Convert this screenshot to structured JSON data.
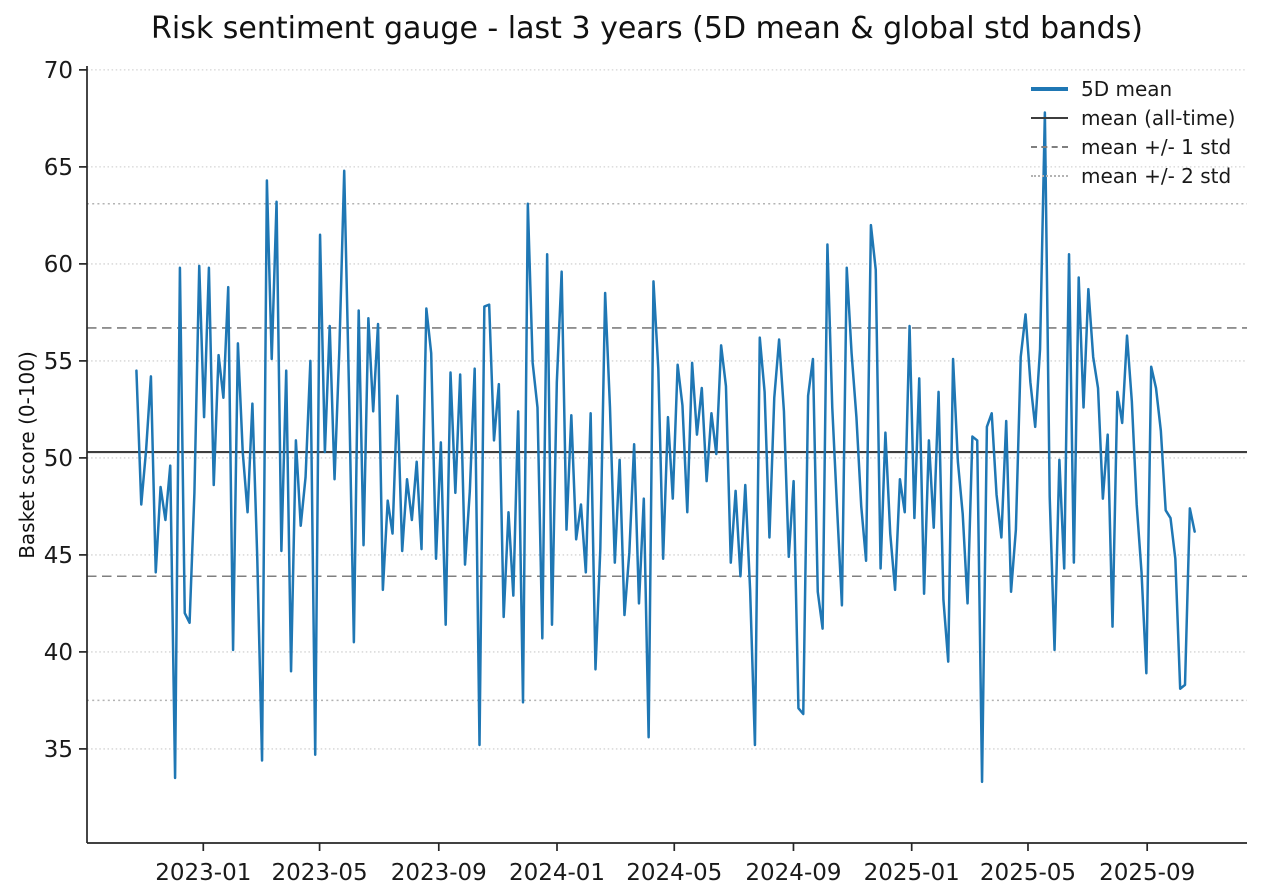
{
  "chart_data": {
    "type": "line",
    "title": "Risk sentiment gauge - last 3 years (5D mean & global std bands)",
    "ylabel": "Basket score (0-100)",
    "xlabel": "",
    "ylim": [
      30.15,
      70.2
    ],
    "yticks": [
      35,
      40,
      45,
      50,
      55,
      60,
      65,
      70
    ],
    "xlim_dates": [
      "2022-09-03",
      "2025-12-13"
    ],
    "xticks": [
      {
        "label": "2023-01",
        "date": "2023-01-01"
      },
      {
        "label": "2023-05",
        "date": "2023-05-01"
      },
      {
        "label": "2023-09",
        "date": "2023-09-01"
      },
      {
        "label": "2024-01",
        "date": "2024-01-01"
      },
      {
        "label": "2024-05",
        "date": "2024-05-01"
      },
      {
        "label": "2024-09",
        "date": "2024-09-01"
      },
      {
        "label": "2025-01",
        "date": "2025-01-01"
      },
      {
        "label": "2025-05",
        "date": "2025-05-01"
      },
      {
        "label": "2025-09",
        "date": "2025-09-01"
      }
    ],
    "grid": {
      "horizontal_dotted_at_yticks": true,
      "color": "#c9c9c9"
    },
    "reference_lines": {
      "mean": 50.3,
      "std": 6.4,
      "mean_line": {
        "value": 50.3,
        "style": "solid",
        "color": "#3d3d3d"
      },
      "one_std_lines": {
        "values": [
          56.7,
          43.9
        ],
        "style": "dashed",
        "color": "#7f7f7f"
      },
      "two_std_lines": {
        "values": [
          63.1,
          37.5
        ],
        "style": "dotted",
        "color": "#b3b3b3"
      }
    },
    "legend": {
      "position": "upper-right",
      "frame": false,
      "entries": [
        {
          "label": "5D mean",
          "style": "solid-thick",
          "color": "#1f77b4"
        },
        {
          "label": "mean (all-time)",
          "style": "solid",
          "color": "#3d3d3d"
        },
        {
          "label": "mean +/- 1 std",
          "style": "dashed",
          "color": "#7f7f7f"
        },
        {
          "label": "mean +/- 2 std",
          "style": "dotted",
          "color": "#b3b3b3"
        }
      ]
    },
    "series": [
      {
        "name": "5D mean",
        "color": "#1f77b4",
        "x_start": "2022-10-24",
        "x_end": "2025-10-20",
        "values": [
          54.5,
          47.6,
          50.4,
          54.2,
          44.1,
          48.5,
          46.8,
          49.6,
          33.5,
          59.8,
          42.0,
          41.5,
          48.2,
          59.9,
          52.1,
          59.8,
          48.6,
          55.3,
          53.1,
          58.8,
          40.1,
          55.9,
          50.3,
          47.2,
          52.8,
          44.9,
          34.4,
          64.3,
          55.1,
          63.2,
          45.2,
          54.5,
          39.0,
          50.9,
          46.5,
          49.0,
          55.0,
          34.7,
          61.5,
          50.3,
          56.8,
          48.9,
          55.6,
          64.8,
          53.4,
          40.5,
          57.6,
          45.5,
          57.2,
          52.4,
          56.9,
          43.2,
          47.8,
          46.1,
          53.2,
          45.2,
          48.9,
          46.8,
          49.8,
          45.3,
          57.7,
          55.4,
          44.8,
          50.8,
          41.4,
          54.4,
          48.2,
          54.3,
          44.5,
          48.3,
          54.6,
          35.2,
          57.8,
          57.9,
          50.9,
          53.8,
          41.8,
          47.2,
          42.9,
          52.4,
          37.4,
          63.1,
          54.9,
          52.6,
          40.7,
          60.5,
          41.4,
          53.9,
          59.6,
          46.3,
          52.2,
          45.8,
          47.6,
          44.1,
          52.3,
          39.1,
          45.3,
          58.5,
          52.6,
          44.6,
          49.9,
          41.9,
          45.1,
          50.7,
          42.5,
          47.9,
          35.6,
          59.1,
          54.6,
          44.8,
          52.1,
          47.9,
          54.8,
          52.7,
          47.2,
          54.9,
          51.2,
          53.6,
          48.8,
          52.3,
          50.2,
          55.8,
          53.7,
          44.6,
          48.3,
          43.9,
          48.6,
          43.2,
          35.2,
          56.2,
          53.4,
          45.9,
          53.1,
          56.1,
          52.4,
          44.9,
          48.8,
          37.1,
          36.8,
          53.2,
          55.1,
          43.1,
          41.2,
          61.0,
          52.6,
          47.4,
          42.4,
          59.8,
          55.4,
          52.1,
          47.5,
          44.7,
          62.0,
          59.7,
          44.3,
          51.3,
          46.1,
          43.2,
          48.9,
          47.2,
          56.8,
          46.9,
          54.1,
          43.0,
          50.9,
          46.4,
          53.4,
          42.7,
          39.5,
          55.1,
          49.8,
          47.1,
          42.5,
          51.1,
          50.9,
          33.3,
          51.6,
          52.3,
          48.1,
          45.9,
          51.9,
          43.1,
          46.3,
          55.2,
          57.4,
          53.9,
          51.6,
          55.6,
          67.8,
          48.0,
          40.1,
          49.9,
          44.3,
          60.5,
          44.6,
          59.3,
          52.6,
          58.7,
          55.2,
          53.6,
          47.9,
          51.2,
          41.3,
          53.4,
          51.8,
          56.3,
          52.9,
          47.6,
          44.1,
          38.9,
          54.7,
          53.6,
          51.4,
          47.3,
          46.9,
          44.8,
          38.1,
          38.3,
          47.4,
          46.2
        ]
      }
    ]
  }
}
